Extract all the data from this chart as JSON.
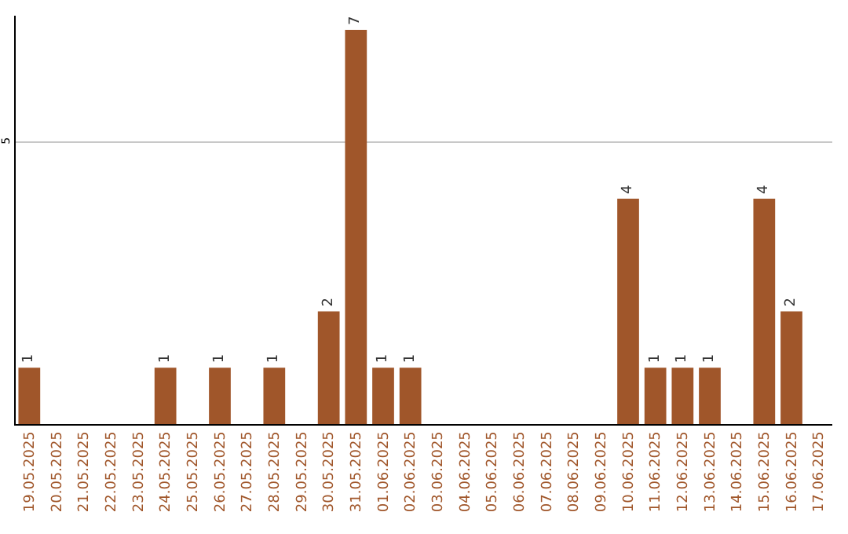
{
  "chart_data": {
    "type": "bar",
    "categories": [
      "19.05.2025",
      "20.05.2025",
      "21.05.2025",
      "22.05.2025",
      "23.05.2025",
      "24.05.2025",
      "25.05.2025",
      "26.05.2025",
      "27.05.2025",
      "28.05.2025",
      "29.05.2025",
      "30.05.2025",
      "31.05.2025",
      "01.06.2025",
      "02.06.2025",
      "03.06.2025",
      "04.06.2025",
      "05.06.2025",
      "06.06.2025",
      "07.06.2025",
      "08.06.2025",
      "09.06.2025",
      "10.06.2025",
      "11.06.2025",
      "12.06.2025",
      "13.06.2025",
      "14.06.2025",
      "15.06.2025",
      "16.06.2025",
      "17.06.2025"
    ],
    "values": [
      1,
      0,
      0,
      0,
      0,
      1,
      0,
      1,
      0,
      1,
      0,
      2,
      7,
      1,
      1,
      0,
      0,
      0,
      0,
      0,
      0,
      0,
      4,
      1,
      1,
      1,
      0,
      4,
      2,
      0
    ],
    "value_labels": [
      "1",
      null,
      null,
      null,
      null,
      "1",
      null,
      "1",
      null,
      "1",
      null,
      "2",
      "7",
      "1",
      "1",
      null,
      null,
      null,
      null,
      null,
      null,
      null,
      "4",
      "1",
      "1",
      "1",
      null,
      "4",
      "2",
      null
    ],
    "color": "#a0562a",
    "ylim": [
      0,
      7.25
    ],
    "yticks": [
      5
    ],
    "grid": "y"
  }
}
